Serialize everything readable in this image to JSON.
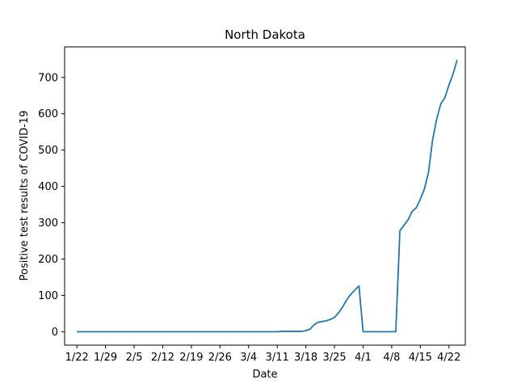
{
  "chart_data": {
    "type": "line",
    "title": "North Dakota",
    "xlabel": "Date",
    "ylabel": "Positive test results of COVID-19",
    "x_tick_labels": [
      "1/22",
      "1/29",
      "2/5",
      "2/12",
      "2/19",
      "2/26",
      "3/4",
      "3/11",
      "3/18",
      "3/25",
      "4/1",
      "4/8",
      "4/15",
      "4/22"
    ],
    "y_ticks": [
      0,
      100,
      200,
      300,
      400,
      500,
      600,
      700
    ],
    "xlim": [
      "1/19",
      "4/26"
    ],
    "ylim": [
      -37,
      784
    ],
    "grid": false,
    "line_color": "#1f77b4",
    "series": [
      {
        "x": [
          "1/22",
          "1/23",
          "1/24",
          "1/25",
          "1/26",
          "1/27",
          "1/28",
          "1/29",
          "1/30",
          "1/31",
          "2/1",
          "2/2",
          "2/3",
          "2/4",
          "2/5",
          "2/6",
          "2/7",
          "2/8",
          "2/9",
          "2/10",
          "2/11",
          "2/12",
          "2/13",
          "2/14",
          "2/15",
          "2/16",
          "2/17",
          "2/18",
          "2/19",
          "2/20",
          "2/21",
          "2/22",
          "2/23",
          "2/24",
          "2/25",
          "2/26",
          "2/27",
          "2/28",
          "2/29",
          "3/1",
          "3/2",
          "3/3",
          "3/4",
          "3/5",
          "3/6",
          "3/7",
          "3/8",
          "3/9",
          "3/10",
          "3/11",
          "3/12",
          "3/13",
          "3/14",
          "3/15",
          "3/16",
          "3/17",
          "3/18",
          "3/19",
          "3/20",
          "3/21",
          "3/22",
          "3/23",
          "3/24",
          "3/25",
          "3/26",
          "3/27",
          "3/28",
          "3/29",
          "3/30",
          "3/31",
          "4/1",
          "4/2",
          "4/3",
          "4/4",
          "4/5",
          "4/6",
          "4/7",
          "4/8",
          "4/9",
          "4/10",
          "4/11",
          "4/12",
          "4/13",
          "4/14",
          "4/15",
          "4/16",
          "4/17",
          "4/18",
          "4/19",
          "4/20",
          "4/21",
          "4/22",
          "4/23",
          "4/24"
        ],
        "y": [
          0,
          0,
          0,
          0,
          0,
          0,
          0,
          0,
          0,
          0,
          0,
          0,
          0,
          0,
          0,
          0,
          0,
          0,
          0,
          0,
          0,
          0,
          0,
          0,
          0,
          0,
          0,
          0,
          0,
          0,
          0,
          0,
          0,
          0,
          0,
          0,
          0,
          0,
          0,
          0,
          0,
          0,
          0,
          0,
          0,
          0,
          0,
          0,
          0,
          0,
          1,
          1,
          1,
          1,
          1,
          1,
          3,
          7,
          19,
          26,
          28,
          30,
          34,
          39,
          52,
          68,
          88,
          103,
          115,
          126,
          0,
          0,
          0,
          0,
          0,
          0,
          0,
          0,
          0,
          278,
          293,
          308,
          331,
          341,
          365,
          393,
          439,
          528,
          585,
          627,
          644,
          679,
          709,
          748
        ]
      }
    ]
  }
}
